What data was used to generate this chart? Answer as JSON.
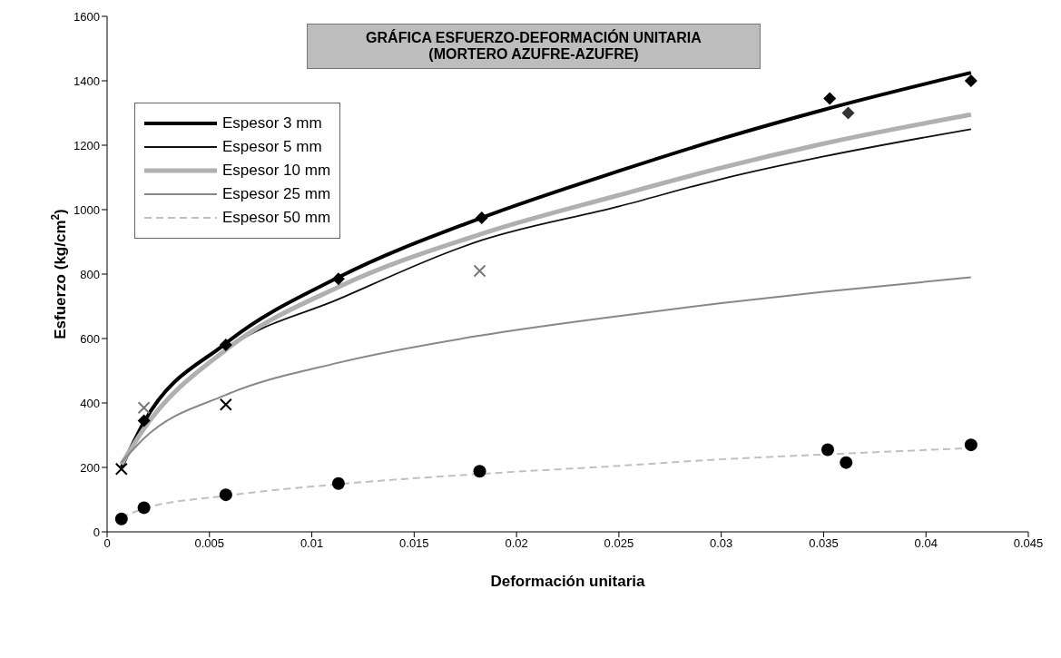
{
  "chart_data": {
    "type": "line",
    "title": "GRÁFICA ESFUERZO-DEFORMACIÓN UNITARIA\n(MORTERO AZUFRE-AZUFRE)",
    "xlabel": "Deformación unitaria",
    "ylabel": "Esfuerzo (kg/cm$^{2}$)",
    "xlim": [
      0,
      0.045
    ],
    "xticks": [
      0,
      0.005,
      0.01,
      0.015,
      0.02,
      0.025,
      0.03,
      0.035,
      0.04,
      0.045
    ],
    "ylim": [
      0,
      1600
    ],
    "yticks": [
      0,
      200,
      400,
      600,
      800,
      1000,
      1200,
      1400,
      1600
    ],
    "grid": false,
    "legend": "top left",
    "series": [
      {
        "name": "Espesor 3 mm",
        "color": "#000000",
        "line_style": "solid",
        "x": [
          0.0007,
          0.0018,
          0.0058,
          0.0113,
          0.0183,
          0.025,
          0.03,
          0.035,
          0.0422
        ],
        "values": [
          200,
          340,
          585,
          790,
          975,
          1120,
          1220,
          1310,
          1425
        ]
      },
      {
        "name": "Espesor 5 mm",
        "color": "#111111",
        "line_style": "solid",
        "x": [
          0.0007,
          0.0018,
          0.0058,
          0.0113,
          0.0183,
          0.025,
          0.03,
          0.035,
          0.0422
        ],
        "values": [
          205,
          320,
          565,
          722,
          905,
          1010,
          1095,
          1165,
          1250
        ]
      },
      {
        "name": "Espesor 10 mm",
        "color": "#b0b0b0",
        "line_style": "solid",
        "x": [
          0.0007,
          0.0018,
          0.0058,
          0.0113,
          0.0183,
          0.025,
          0.03,
          0.035,
          0.0422
        ],
        "values": [
          210,
          320,
          565,
          760,
          925,
          1045,
          1130,
          1205,
          1295
        ]
      },
      {
        "name": "Espesor 25 mm",
        "color": "#888888",
        "line_style": "solid",
        "x": [
          0.0007,
          0.0018,
          0.0058,
          0.0113,
          0.0183,
          0.025,
          0.03,
          0.035,
          0.0422
        ],
        "values": [
          215,
          290,
          425,
          525,
          610,
          670,
          710,
          745,
          790
        ]
      },
      {
        "name": "Espesor 50 mm",
        "color": "#c0c0c0",
        "line_style": "dashed",
        "x": [
          0.0007,
          0.0018,
          0.0058,
          0.0113,
          0.0183,
          0.025,
          0.03,
          0.035,
          0.0422
        ],
        "values": [
          45,
          72,
          112,
          148,
          180,
          205,
          225,
          240,
          260
        ]
      },
      {
        "type": "scatter",
        "marker": "diamond",
        "color": "#000000",
        "x": [
          0.0018,
          0.0058,
          0.0113,
          0.0183,
          0.0353,
          0.0422
        ],
        "values": [
          345,
          580,
          785,
          975,
          1345,
          1400
        ]
      },
      {
        "type": "scatter",
        "marker": "diamond",
        "color": "#333333",
        "x": [
          0.0362
        ],
        "values": [
          1300
        ]
      },
      {
        "type": "scatter",
        "marker": "cross",
        "color": "#777777",
        "x": [
          0.0018,
          0.0182
        ],
        "values": [
          385,
          810
        ]
      },
      {
        "type": "scatter",
        "marker": "cross",
        "color": "#000000",
        "x": [
          0.0007,
          0.0058
        ],
        "values": [
          195,
          395
        ]
      },
      {
        "type": "scatter",
        "marker": "circle",
        "color": "#000000",
        "x": [
          0.0007,
          0.0018,
          0.0058,
          0.0113,
          0.0182,
          0.0352,
          0.0361,
          0.0422
        ],
        "values": [
          40,
          75,
          115,
          150,
          188,
          255,
          215,
          270
        ]
      }
    ]
  }
}
